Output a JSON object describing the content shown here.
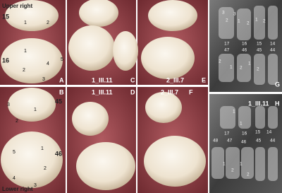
{
  "panels": [
    {
      "id": "A",
      "title": "Upper right",
      "tooth_numbers": [
        "15",
        "16"
      ],
      "cusp_labels": [
        "1",
        "2",
        "1",
        "2",
        "3",
        "4",
        "5"
      ]
    },
    {
      "id": "B",
      "title": "Lower right",
      "tooth_numbers": [
        "45",
        "46"
      ],
      "cusp_labels": [
        "3",
        "1",
        "2",
        "5",
        "1",
        "2",
        "4",
        "3"
      ]
    },
    {
      "id": "C",
      "specimen": "1_III.11"
    },
    {
      "id": "D",
      "specimen": "1_III.11"
    },
    {
      "id": "E",
      "specimen": "2_III.7"
    },
    {
      "id": "F",
      "specimen": "2_III.7"
    },
    {
      "id": "G",
      "root_labels_upper": [
        "3",
        "3",
        "2",
        "1",
        "2",
        "1",
        "2"
      ],
      "tooth_numbers": [
        "17",
        "16",
        "15",
        "14",
        "47",
        "46",
        "45",
        "44"
      ],
      "root_labels_lower": [
        "2",
        "1",
        "2",
        "1",
        "2"
      ]
    },
    {
      "id": "H",
      "specimen": "1_III.11",
      "root_labels_upper": [
        "1",
        "1"
      ],
      "tooth_numbers": [
        "17",
        "16",
        "15",
        "14",
        "48",
        "47",
        "46",
        "45",
        "44"
      ],
      "root_labels_lower": [
        "1",
        "2",
        "1",
        "2"
      ]
    }
  ]
}
